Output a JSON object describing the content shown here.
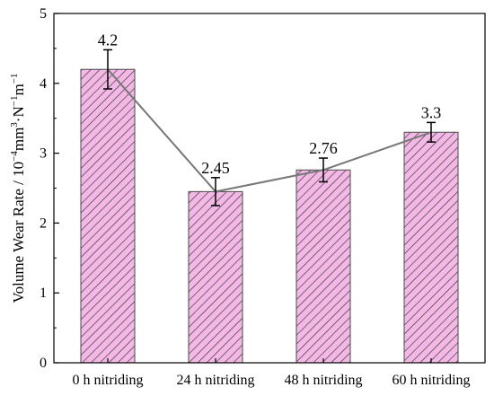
{
  "chart_data": {
    "type": "bar",
    "categories": [
      "0 h nitriding",
      "24 h nitriding",
      "48 h nitriding",
      "60 h nitriding"
    ],
    "values": [
      4.2,
      2.45,
      2.76,
      3.3
    ],
    "errors": [
      0.28,
      0.2,
      0.17,
      0.14
    ],
    "data_labels": [
      "4.2",
      "2.45",
      "2.76",
      "3.3"
    ],
    "connecting_line": true,
    "ylabel": {
      "prefix": "Volume Wear Rate / 10",
      "exp1": "−4",
      "mid1": "mm",
      "exp2": "3",
      "mid2": "·N",
      "exp3": "−1",
      "mid3": "m",
      "exp4": "−1"
    },
    "xlabel": "",
    "ylim": [
      0,
      5
    ],
    "yticks": [
      "0",
      "1",
      "2",
      "3",
      "4",
      "5"
    ],
    "grid": false,
    "legend": "none",
    "colors": {
      "bar_fill": "#f4b8e6",
      "hatch": "#333333",
      "bar_edge": "#4a4a4a",
      "line": "#777777",
      "error_bar": "#000000"
    }
  }
}
